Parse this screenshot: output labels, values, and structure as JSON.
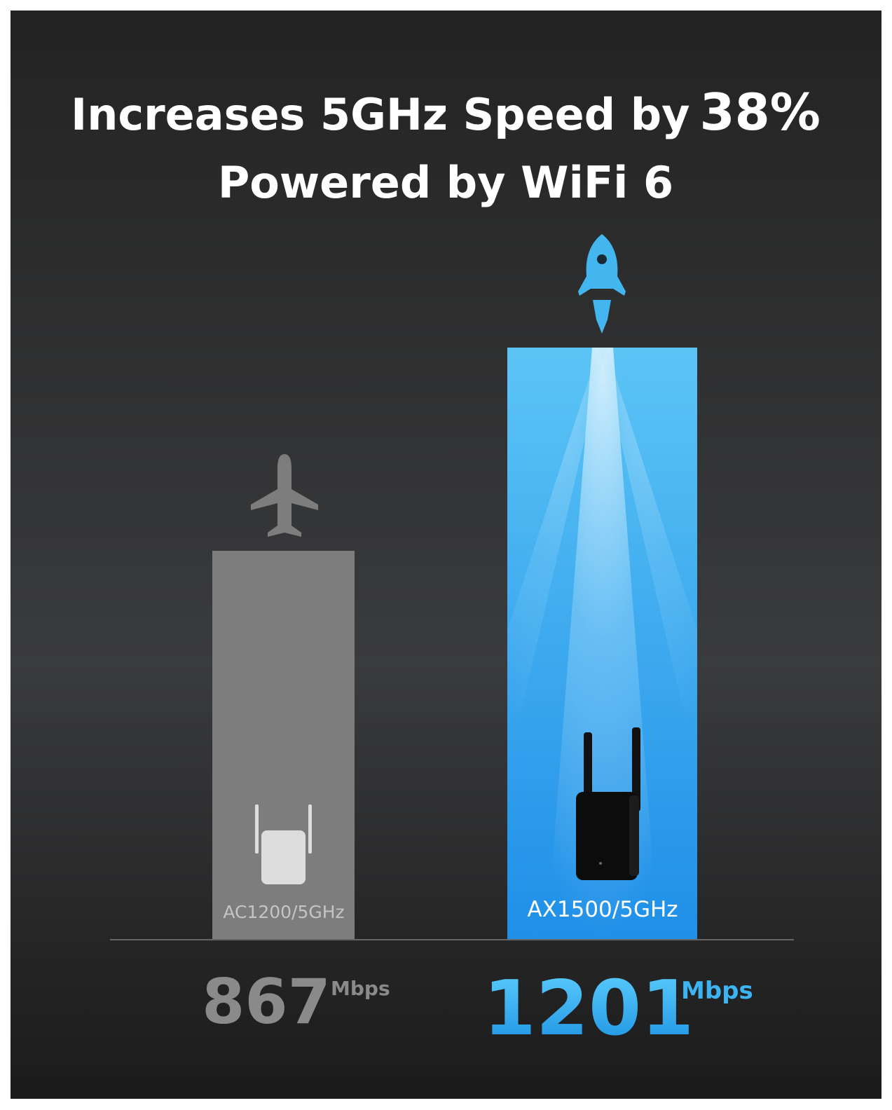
{
  "title": {
    "line1": "Increases 5GHz Speed by",
    "highlight": "38%",
    "line2": "Powered by WiFi 6"
  },
  "items": [
    {
      "label": "AC1200/5GHz",
      "value": "867",
      "unit": "Mbps"
    },
    {
      "label": "AX1500/5GHz",
      "value": "1201",
      "unit": "Mbps"
    }
  ]
}
